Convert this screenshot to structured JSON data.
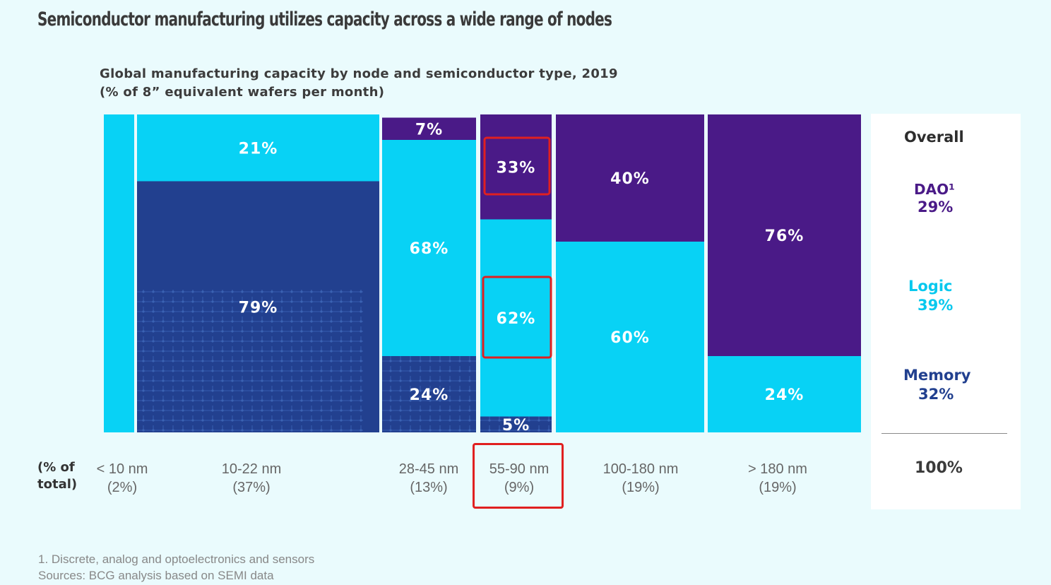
{
  "page_title": "Semiconductor manufacturing utilizes capacity across a wide range of nodes",
  "chart_title_line1": "Global manufacturing capacity by node and semiconductor type, 2019",
  "chart_title_line2": "(% of 8” equivalent wafers per month)",
  "colors": {
    "dao": "#4a1a87",
    "logic": "#08d2f5",
    "memory": "#22408f",
    "highlight": "#e02020",
    "background": "#eafbfd"
  },
  "axis_caption_line1": "(% of",
  "axis_caption_line2": "total)",
  "chart_data": {
    "type": "bar",
    "subtype": "marimekko",
    "categories": [
      "< 10 nm",
      "10-22 nm",
      "28-45 nm",
      "55-90 nm",
      "100-180 nm",
      "> 180 nm"
    ],
    "category_share_labels": [
      "(2%)",
      "(37%)",
      "(13%)",
      "(9%)",
      "(19%)",
      "(19%)"
    ],
    "category_shares": [
      2,
      37,
      13,
      9,
      19,
      19
    ],
    "series": [
      {
        "name": "DAO¹",
        "color": "#4a1a87",
        "values": [
          0,
          0,
          7,
          33,
          40,
          76
        ],
        "labels": [
          "",
          "",
          "7%",
          "33%",
          "40%",
          "76%"
        ]
      },
      {
        "name": "Logic",
        "color": "#08d2f5",
        "values": [
          100,
          21,
          68,
          62,
          60,
          24
        ],
        "labels": [
          "",
          "21%",
          "68%",
          "62%",
          "60%",
          "24%"
        ]
      },
      {
        "name": "Memory",
        "color": "#22408f",
        "values": [
          0,
          79,
          24,
          5,
          0,
          0
        ],
        "labels": [
          "",
          "79%",
          "24%",
          "5%",
          "",
          ""
        ]
      }
    ],
    "highlighted_category": "55-90 nm"
  },
  "overall": {
    "title": "Overall",
    "dao_label": "DAO¹",
    "dao_value": "29%",
    "logic_label": "Logic",
    "logic_value": "39%",
    "memory_label": "Memory",
    "memory_value": "32%",
    "total": "100%"
  },
  "footnote_1": "1. Discrete, analog and optoelectronics and sensors",
  "sources": "Sources: BCG analysis based on SEMI data"
}
